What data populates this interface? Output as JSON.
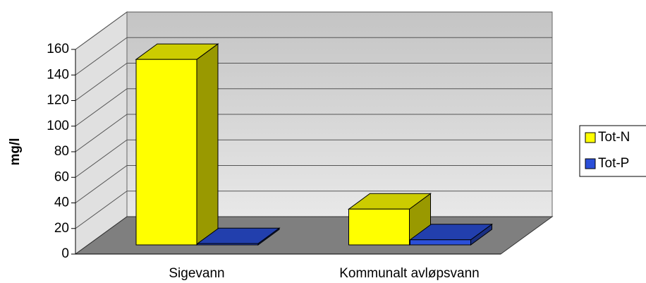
{
  "chart_data": {
    "type": "bar3d",
    "y_label": "mg/l",
    "categories": [
      "Sigevann",
      "Kommunalt avløpsvann"
    ],
    "series": [
      {
        "name": "Tot-N",
        "color": "#ffff00",
        "values": [
          145,
          28
        ]
      },
      {
        "name": "Tot-P",
        "color": "#2b4fd8",
        "values": [
          1,
          4
        ]
      }
    ],
    "ylim": [
      0,
      160
    ],
    "yticks": [
      0,
      20,
      40,
      60,
      80,
      100,
      120,
      140,
      160
    ],
    "grid": true,
    "legend": "right"
  }
}
